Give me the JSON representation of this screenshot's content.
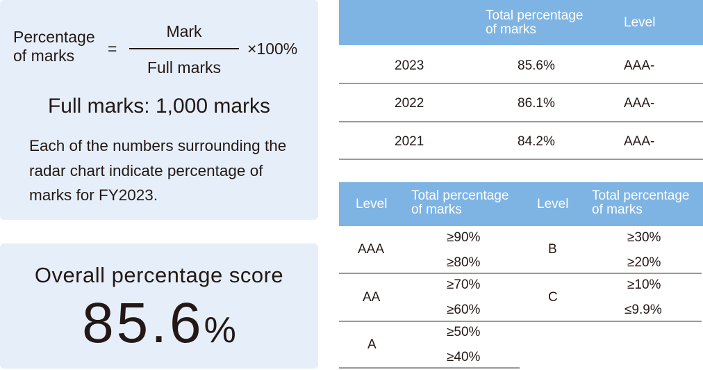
{
  "formula": {
    "lhs_line1": "Percentage",
    "lhs_line2": "of marks",
    "equals": "=",
    "numerator": "Mark",
    "denominator": "Full marks",
    "multiplier": "×100%",
    "full_marks": "Full marks: 1,000 marks",
    "note": "Each of the numbers surrounding the radar chart indicate percentage of marks for FY2023."
  },
  "score": {
    "label": "Overall percentage score",
    "value": "85.6",
    "unit": "%"
  },
  "year_table": {
    "headers": [
      "",
      "Total percentage of marks",
      "Level"
    ],
    "header_pct_line1": "Total percentage",
    "header_pct_line2": "of marks",
    "rows": [
      {
        "year": "2023",
        "pct": "85.6%",
        "level": "AAA-"
      },
      {
        "year": "2022",
        "pct": "86.1%",
        "level": "AAA-"
      },
      {
        "year": "2021",
        "pct": "84.2%",
        "level": "AAA-"
      }
    ]
  },
  "level_table": {
    "header_level": "Level",
    "header_pct_line1": "Total percentage",
    "header_pct_line2": "of marks",
    "left": [
      {
        "level": "AAA",
        "values": [
          "≥90%",
          "≥80%"
        ]
      },
      {
        "level": "AA",
        "values": [
          "≥70%",
          "≥60%"
        ]
      },
      {
        "level": "A",
        "values": [
          "≥50%",
          "≥40%"
        ]
      }
    ],
    "right": [
      {
        "level": "B",
        "values": [
          "≥30%",
          "≥20%"
        ]
      },
      {
        "level": "C",
        "values": [
          "≥10%",
          "≤9.9%"
        ]
      }
    ]
  },
  "colors": {
    "panel_bg": "#e6eff9",
    "header_bg": "#7eb4e3",
    "text": "#231815"
  }
}
